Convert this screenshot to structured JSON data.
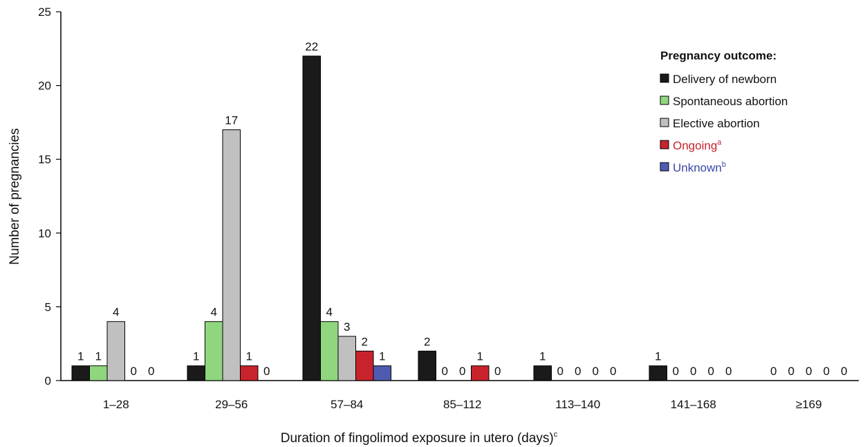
{
  "chart_data": {
    "type": "bar",
    "xlabel": "Duration of fingolimod exposure in utero (days)",
    "xlabel_sup": "c",
    "ylabel": "Number of pregnancies",
    "ylim": [
      0,
      25
    ],
    "yticks": [
      0,
      5,
      10,
      15,
      20,
      25
    ],
    "categories": [
      "1–28",
      "29–56",
      "57–84",
      "85–112",
      "113–140",
      "141–168",
      "≥169"
    ],
    "series": [
      {
        "name": "Delivery of newborn",
        "color": "#1a1a1a",
        "values": [
          1,
          1,
          22,
          2,
          1,
          1,
          0
        ]
      },
      {
        "name": "Spontaneous abortion",
        "color": "#8fd67f",
        "values": [
          1,
          4,
          4,
          0,
          0,
          0,
          0
        ]
      },
      {
        "name": "Elective abortion",
        "color": "#c0c0c0",
        "values": [
          4,
          17,
          3,
          0,
          0,
          0,
          0
        ]
      },
      {
        "name": "Ongoing",
        "sup": "a",
        "color": "#c8232c",
        "text_color": "#c8232c",
        "values": [
          0,
          1,
          2,
          1,
          0,
          0,
          0
        ]
      },
      {
        "name": "Unknown",
        "sup": "b",
        "color": "#4f5bb0",
        "text_color": "#3a47a8",
        "values": [
          0,
          0,
          1,
          0,
          0,
          0,
          0
        ]
      }
    ],
    "legend": {
      "title": "Pregnancy outcome:",
      "placement": "top-right"
    },
    "grid": false
  }
}
